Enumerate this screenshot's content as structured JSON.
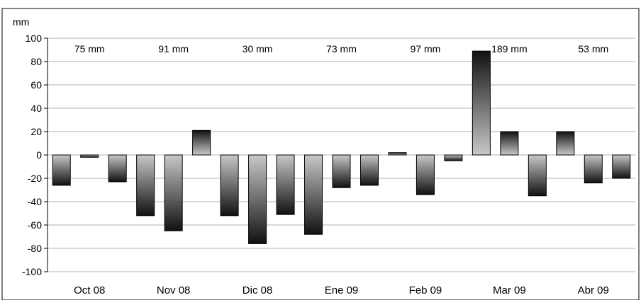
{
  "chart_data": {
    "type": "bar",
    "ylabel": "mm",
    "ylim": [
      -100,
      100
    ],
    "y_ticks": [
      100,
      80,
      60,
      40,
      20,
      0,
      -20,
      -40,
      -60,
      -80,
      -100
    ],
    "grid": true,
    "legend": "none",
    "groups": [
      {
        "label": "Oct 08",
        "total": "75 mm",
        "values": [
          -26,
          -2,
          -23
        ]
      },
      {
        "label": "Nov 08",
        "total": "91 mm",
        "values": [
          -52,
          -65,
          21
        ]
      },
      {
        "label": "Dic 08",
        "total": "30 mm",
        "values": [
          -52,
          -76,
          -51
        ]
      },
      {
        "label": "Ene 09",
        "total": "73 mm",
        "values": [
          -68,
          -28,
          -26
        ]
      },
      {
        "label": "Feb 09",
        "total": "97 mm",
        "values": [
          2,
          -34,
          -5
        ]
      },
      {
        "label": "Mar 09",
        "total": "189 mm",
        "values": [
          89,
          20,
          -35
        ]
      },
      {
        "label": "Abr 09",
        "total": "53 mm",
        "values": [
          20,
          -24,
          -20
        ]
      }
    ],
    "colors": {
      "bar_dark": "#111111",
      "bar_light": "#c8c8c8",
      "grid": "#b0b0b0",
      "axis": "#000000"
    }
  }
}
